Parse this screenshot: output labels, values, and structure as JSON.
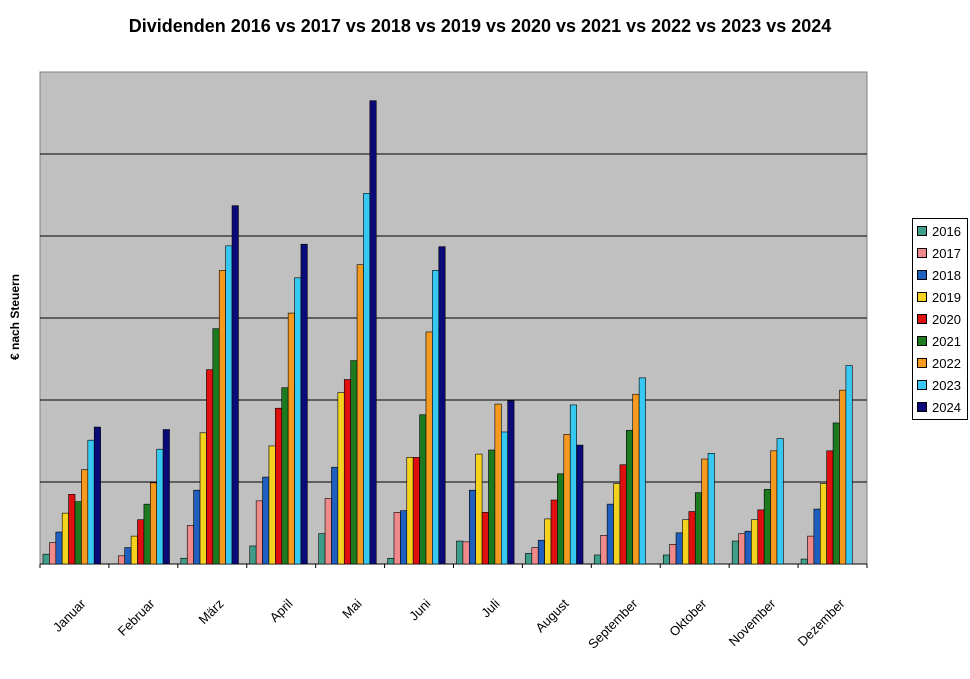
{
  "chart_data": {
    "type": "bar",
    "title": "Dividenden 2016 vs 2017 vs 2018 vs 2019 vs 2020 vs 2021 vs 2022 vs 2023 vs 2024",
    "xlabel": "",
    "ylabel": "€ nach Steuern",
    "ylim": [
      0,
      600
    ],
    "grid": true,
    "legend_position": "right",
    "categories": [
      "Januar",
      "Februar",
      "März",
      "April",
      "Mai",
      "Juni",
      "Juli",
      "August",
      "September",
      "Oktober",
      "November",
      "Dezember"
    ],
    "series": [
      {
        "name": "2016",
        "color": "#3f9e8a",
        "values": [
          12,
          0,
          7,
          22,
          37,
          7,
          28,
          13,
          11,
          11,
          28,
          6
        ]
      },
      {
        "name": "2017",
        "color": "#f08a8a",
        "values": [
          26,
          10,
          47,
          77,
          80,
          63,
          27,
          20,
          35,
          24,
          37,
          34
        ]
      },
      {
        "name": "2018",
        "color": "#1f5fbf",
        "values": [
          39,
          20,
          90,
          106,
          118,
          65,
          90,
          29,
          73,
          38,
          40,
          67
        ]
      },
      {
        "name": "2019",
        "color": "#f5d21e",
        "values": [
          62,
          34,
          160,
          144,
          209,
          130,
          134,
          55,
          98,
          54,
          54,
          98
        ]
      },
      {
        "name": "2020",
        "color": "#e01010",
        "values": [
          85,
          54,
          237,
          190,
          225,
          130,
          63,
          78,
          121,
          64,
          66,
          138
        ]
      },
      {
        "name": "2021",
        "color": "#1e7a1e",
        "values": [
          76,
          73,
          287,
          215,
          248,
          182,
          139,
          110,
          163,
          87,
          91,
          172
        ]
      },
      {
        "name": "2022",
        "color": "#f59a1e",
        "values": [
          115,
          99,
          358,
          306,
          365,
          283,
          195,
          158,
          207,
          128,
          138,
          212
        ]
      },
      {
        "name": "2023",
        "color": "#36c8f0",
        "values": [
          151,
          140,
          388,
          349,
          452,
          358,
          161,
          194,
          227,
          135,
          153,
          242
        ]
      },
      {
        "name": "2024",
        "color": "#0a0a78",
        "values": [
          167,
          164,
          437,
          390,
          565,
          387,
          199,
          145,
          0,
          0,
          0,
          0
        ]
      }
    ]
  }
}
